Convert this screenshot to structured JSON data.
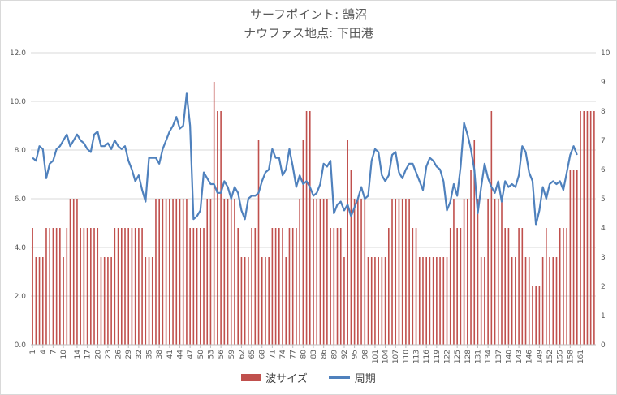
{
  "chart_data": {
    "type": "bar+line",
    "title": "サーフポイント: 鵠沼",
    "subtitle": "ナウファス地点: 下田港",
    "series": [
      {
        "name": "波サイズ",
        "type": "bar",
        "axis": "left",
        "color": "#c0504d",
        "values": [
          4.8,
          3.6,
          3.6,
          3.6,
          4.8,
          4.8,
          4.8,
          4.8,
          4.8,
          3.6,
          4.8,
          6.0,
          6.0,
          6.0,
          4.8,
          4.8,
          4.8,
          4.8,
          4.8,
          4.8,
          3.6,
          3.6,
          3.6,
          3.6,
          4.8,
          4.8,
          4.8,
          4.8,
          4.8,
          4.8,
          4.8,
          4.8,
          4.8,
          3.6,
          3.6,
          3.6,
          6.0,
          6.0,
          6.0,
          6.0,
          6.0,
          6.0,
          6.0,
          6.0,
          6.0,
          6.0,
          4.8,
          4.8,
          4.8,
          4.8,
          4.8,
          6.0,
          6.0,
          10.8,
          9.6,
          9.6,
          6.0,
          6.0,
          6.0,
          6.0,
          4.8,
          3.6,
          3.6,
          3.6,
          4.8,
          4.8,
          8.4,
          3.6,
          3.6,
          3.6,
          4.8,
          4.8,
          4.8,
          4.8,
          3.6,
          4.8,
          4.8,
          4.8,
          6.0,
          8.4,
          9.6,
          9.6,
          6.0,
          6.0,
          6.0,
          6.0,
          6.0,
          4.8,
          4.8,
          4.8,
          4.8,
          3.6,
          8.4,
          7.2,
          6.0,
          6.0,
          6.0,
          6.0,
          3.6,
          3.6,
          3.6,
          3.6,
          3.6,
          3.6,
          4.8,
          6.0,
          6.0,
          6.0,
          6.0,
          6.0,
          6.0,
          4.8,
          4.8,
          3.6,
          3.6,
          3.6,
          3.6,
          3.6,
          3.6,
          3.6,
          3.6,
          3.6,
          4.8,
          6.0,
          4.8,
          4.8,
          6.0,
          6.0,
          7.2,
          8.4,
          6.0,
          3.6,
          3.6,
          6.0,
          9.6,
          6.0,
          6.0,
          6.0,
          4.8,
          4.8,
          3.6,
          3.6,
          4.8,
          4.8,
          3.6,
          3.6,
          2.4,
          2.4,
          2.4,
          3.6,
          4.8,
          3.6,
          3.6,
          3.6,
          4.8,
          4.8,
          4.8,
          7.2,
          7.2,
          7.2,
          9.6,
          9.6,
          9.6,
          9.6,
          9.6
        ]
      },
      {
        "name": "周期",
        "type": "line",
        "axis": "right",
        "color": "#4f81bd",
        "values": [
          6.4,
          6.3,
          6.8,
          6.7,
          5.7,
          6.2,
          6.3,
          6.7,
          6.8,
          7.0,
          7.2,
          6.8,
          7.0,
          7.2,
          7.0,
          6.9,
          6.7,
          6.6,
          7.2,
          7.3,
          6.8,
          6.8,
          6.9,
          6.7,
          7.0,
          6.8,
          6.7,
          6.8,
          6.3,
          6.0,
          5.6,
          5.8,
          5.3,
          4.9,
          6.4,
          6.4,
          6.4,
          6.2,
          6.7,
          7.0,
          7.3,
          7.5,
          7.8,
          7.4,
          7.5,
          8.6,
          7.5,
          4.3,
          4.4,
          4.6,
          5.9,
          5.7,
          5.5,
          5.5,
          5.2,
          5.2,
          5.6,
          5.4,
          5.0,
          5.4,
          5.2,
          4.6,
          4.3,
          5.0,
          5.1,
          5.1,
          5.2,
          5.6,
          5.9,
          6.0,
          6.7,
          6.4,
          6.4,
          5.8,
          6.0,
          6.7,
          6.1,
          5.4,
          5.8,
          5.5,
          5.6,
          5.4,
          5.1,
          5.2,
          5.5,
          6.2,
          6.1,
          6.3,
          4.5,
          4.8,
          4.9,
          4.6,
          4.8,
          4.4,
          4.7,
          5.0,
          5.4,
          5.0,
          5.1,
          6.3,
          6.7,
          6.6,
          5.8,
          5.6,
          5.8,
          6.5,
          6.6,
          5.9,
          5.7,
          6.0,
          6.2,
          6.2,
          5.9,
          5.6,
          5.3,
          6.1,
          6.4,
          6.3,
          6.1,
          6.0,
          5.6,
          4.6,
          4.9,
          5.5,
          5.1,
          6.1,
          7.6,
          7.2,
          6.7,
          6.0,
          4.5,
          5.4,
          6.2,
          5.7,
          5.4,
          5.2,
          5.6,
          4.9,
          5.6,
          5.4,
          5.5,
          5.4,
          5.8,
          6.8,
          6.6,
          5.9,
          5.6,
          4.1,
          4.6,
          5.4,
          5.0,
          5.5,
          5.6,
          5.5,
          5.6,
          5.3,
          5.9,
          6.5,
          6.8,
          6.5
        ]
      }
    ],
    "x_tick_labels": [
      "1",
      "4",
      "7",
      "10",
      "14",
      "17",
      "20",
      "23",
      "26",
      "29",
      "32",
      "35",
      "38",
      "41",
      "44",
      "47",
      "50",
      "53",
      "56",
      "59",
      "62",
      "65",
      "68",
      "71",
      "74",
      "77",
      "80",
      "83",
      "86",
      "89",
      "92",
      "95",
      "98",
      "101",
      "104",
      "107",
      "110",
      "113",
      "116",
      "119",
      "122",
      "125",
      "128",
      "131",
      "134",
      "137",
      "140",
      "143",
      "146",
      "149",
      "152",
      "155",
      "158",
      "161"
    ],
    "y_left": {
      "min": 0,
      "max": 12,
      "ticks": [
        "0.0",
        "2.0",
        "4.0",
        "6.0",
        "8.0",
        "10.0",
        "12.0"
      ]
    },
    "y_right": {
      "min": 0,
      "max": 10,
      "ticks": [
        "0",
        "1",
        "2",
        "3",
        "4",
        "5",
        "6",
        "7",
        "8",
        "9",
        "10"
      ]
    },
    "grid": "horizontal",
    "legend": "bottom"
  },
  "legend": {
    "bar_label": "波サイズ",
    "line_label": "周期"
  }
}
